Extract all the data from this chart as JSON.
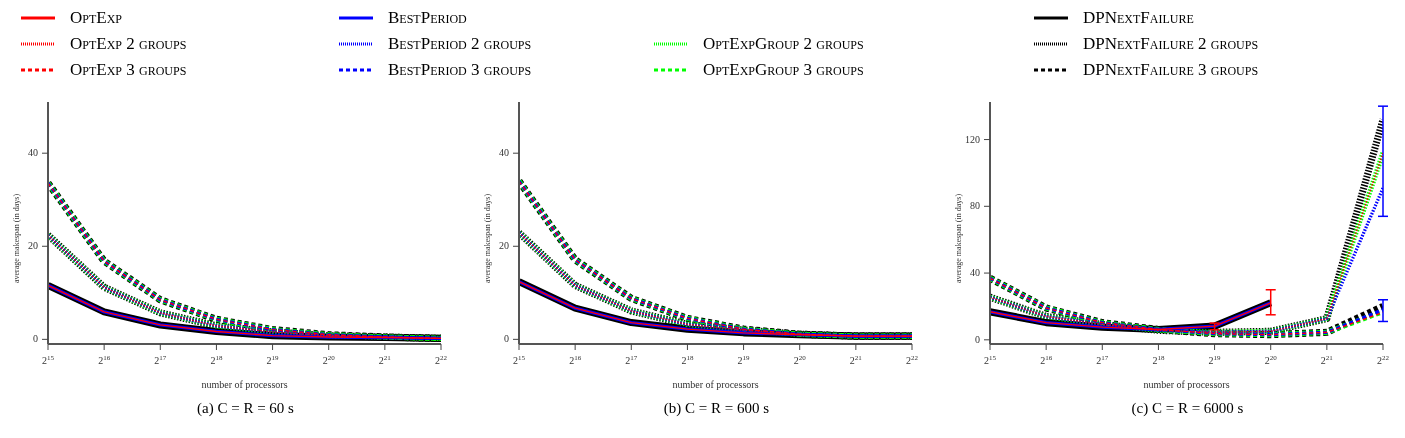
{
  "chart_data": [
    {
      "type": "line",
      "xlabel": "number of processors",
      "ylabel": "average makespan (in days)",
      "annotations": [
        "(a) C = R = 60 s"
      ],
      "log": "x",
      "legend": "top",
      "grid": false,
      "marker": "none",
      "x": [
        32768,
        65536,
        131072,
        262144,
        524288,
        1048576,
        2097152,
        4194304
      ],
      "xlim": [
        32768,
        4194304
      ],
      "xticks": [
        {
          "value": 32768,
          "label": "2$^{15}$"
        },
        {
          "value": 65536,
          "label": "2$^{16}$"
        },
        {
          "value": 131072,
          "label": "2$^{17}$"
        },
        {
          "value": 262144,
          "label": "2$^{18}$"
        },
        {
          "value": 524288,
          "label": "2$^{19}$"
        },
        {
          "value": 1048576,
          "label": "2$^{20}$"
        },
        {
          "value": 2097152,
          "label": "2$^{21}$"
        },
        {
          "value": 4194304,
          "label": "2$^{22}$"
        }
      ],
      "ylim": [
        -1,
        51
      ],
      "yticks": [
        0,
        20,
        40
      ],
      "series": [
        {
          "name": "OptExp",
          "color": "#ff0000",
          "line_style": "solid",
          "values": [
            11.6,
            5.9,
            3.1,
            1.7,
            0.8,
            0.5,
            0.4,
            0.2
          ]
        },
        {
          "name": "OptExp 2 groups",
          "color": "#ff0000",
          "line_style": "dotted",
          "values": [
            22.4,
            11.2,
            5.7,
            2.9,
            1.6,
            0.8,
            0.5,
            0.2
          ]
        },
        {
          "name": "OptExp 3 groups",
          "color": "#ff0000",
          "line_style": "dashed",
          "values": [
            33.6,
            16.8,
            8.5,
            4.3,
            2.1,
            1.0,
            0.5,
            0.2
          ]
        },
        {
          "name": "BestPeriod",
          "color": "#0000ff",
          "line_style": "solid",
          "values": [
            11.6,
            5.9,
            3.1,
            1.7,
            0.8,
            0.5,
            0.4,
            0.2
          ]
        },
        {
          "name": "BestPeriod 2 groups",
          "color": "#0000ff",
          "line_style": "dotted",
          "values": [
            22.4,
            11.2,
            5.7,
            2.9,
            1.6,
            0.8,
            0.5,
            0.2
          ]
        },
        {
          "name": "BestPeriod 3 groups",
          "color": "#0000ff",
          "line_style": "dashed",
          "values": [
            33.6,
            16.8,
            8.5,
            4.3,
            2.1,
            1.0,
            0.5,
            0.2
          ]
        },
        {
          "name": "OptExpGroup 2 groups",
          "color": "#00ff00",
          "line_style": "dotted",
          "values": [
            22.4,
            11.2,
            5.7,
            2.9,
            1.6,
            0.8,
            0.5,
            0.2
          ]
        },
        {
          "name": "OptExpGroup 3 groups",
          "color": "#00ff00",
          "line_style": "dashed",
          "values": [
            33.6,
            16.8,
            8.5,
            4.3,
            2.1,
            1.0,
            0.5,
            0.2
          ]
        },
        {
          "name": "DPNextFailure",
          "color": "#000000",
          "line_style": "solid",
          "values": [
            11.6,
            5.9,
            3.1,
            1.7,
            0.8,
            0.5,
            0.4,
            0.2
          ]
        },
        {
          "name": "DPNextFailure 2 groups",
          "color": "#000000",
          "line_style": "dotted",
          "values": [
            22.4,
            11.2,
            5.7,
            2.9,
            1.6,
            0.8,
            0.5,
            0.2
          ]
        },
        {
          "name": "DPNextFailure 3 groups",
          "color": "#000000",
          "line_style": "dashed",
          "values": [
            33.6,
            16.8,
            8.5,
            4.3,
            2.1,
            1.0,
            0.5,
            0.2
          ]
        }
      ]
    },
    {
      "type": "line",
      "xlabel": "number of processors",
      "ylabel": "average makespan (in days)",
      "annotations": [
        "(b) C = R = 600 s"
      ],
      "log": "x",
      "grid": false,
      "marker": "none",
      "x": [
        32768,
        65536,
        131072,
        262144,
        524288,
        1048576,
        2097152,
        4194304
      ],
      "xlim": [
        32768,
        4194304
      ],
      "xticks": [
        {
          "value": 32768,
          "label": "2$^{15}$"
        },
        {
          "value": 65536,
          "label": "2$^{16}$"
        },
        {
          "value": 131072,
          "label": "2$^{17}$"
        },
        {
          "value": 262144,
          "label": "2$^{18}$"
        },
        {
          "value": 524288,
          "label": "2$^{19}$"
        },
        {
          "value": 1048576,
          "label": "2$^{20}$"
        },
        {
          "value": 2097152,
          "label": "2$^{21}$"
        },
        {
          "value": 4194304,
          "label": "2$^{22}$"
        }
      ],
      "ylim": [
        -1,
        51
      ],
      "yticks": [
        0,
        20,
        40
      ],
      "series": [
        {
          "color": "#ff0000",
          "line_style": "solid",
          "values": [
            12.4,
            6.7,
            3.6,
            2.2,
            1.4,
            1.0,
            0.7,
            0.7
          ]
        },
        {
          "color": "#ff0000",
          "line_style": "dotted",
          "values": [
            22.9,
            11.6,
            6.1,
            3.2,
            2.0,
            1.1,
            0.7,
            0.7
          ]
        },
        {
          "color": "#ff0000",
          "line_style": "dashed",
          "values": [
            34.0,
            17.1,
            8.8,
            4.5,
            2.2,
            1.1,
            0.7,
            0.7
          ]
        },
        {
          "color": "#0000ff",
          "line_style": "solid",
          "values": [
            12.4,
            6.7,
            3.6,
            2.2,
            1.4,
            1.0,
            0.7,
            0.7
          ]
        },
        {
          "color": "#0000ff",
          "line_style": "dotted",
          "values": [
            22.9,
            11.6,
            6.1,
            3.2,
            2.0,
            1.1,
            0.7,
            0.7
          ]
        },
        {
          "color": "#0000ff",
          "line_style": "dashed",
          "values": [
            34.0,
            17.1,
            8.8,
            4.5,
            2.2,
            1.1,
            0.7,
            0.7
          ]
        },
        {
          "color": "#00ff00",
          "line_style": "dotted",
          "values": [
            22.9,
            11.6,
            6.1,
            3.2,
            2.0,
            1.1,
            0.7,
            0.7
          ]
        },
        {
          "color": "#00ff00",
          "line_style": "dashed",
          "values": [
            34.0,
            17.1,
            8.8,
            4.5,
            2.2,
            1.1,
            0.7,
            0.7
          ]
        },
        {
          "color": "#000000",
          "line_style": "solid",
          "values": [
            12.4,
            6.7,
            3.6,
            2.2,
            1.4,
            1.0,
            0.7,
            0.7
          ]
        },
        {
          "color": "#000000",
          "line_style": "dotted",
          "values": [
            22.9,
            11.6,
            6.1,
            3.2,
            2.0,
            1.1,
            0.7,
            0.7
          ]
        },
        {
          "color": "#000000",
          "line_style": "dashed",
          "values": [
            34.0,
            17.1,
            8.8,
            4.5,
            2.2,
            1.1,
            0.7,
            0.7
          ]
        }
      ]
    },
    {
      "type": "line",
      "xlabel": "number of processors",
      "ylabel": "average makespan (in days)",
      "annotations": [
        "(c) C = R = 6000 s"
      ],
      "log": "x",
      "grid": false,
      "marker": "none",
      "x": [
        32768,
        65536,
        131072,
        262144,
        524288,
        1048576,
        2097152,
        4194304
      ],
      "xlim": [
        32768,
        4194304
      ],
      "xticks": [
        {
          "value": 32768,
          "label": "2$^{15}$"
        },
        {
          "value": 65536,
          "label": "2$^{16}$"
        },
        {
          "value": 131072,
          "label": "2$^{17}$"
        },
        {
          "value": 262144,
          "label": "2$^{18}$"
        },
        {
          "value": 524288,
          "label": "2$^{19}$"
        },
        {
          "value": 1048576,
          "label": "2$^{20}$"
        },
        {
          "value": 2097152,
          "label": "2$^{21}$"
        },
        {
          "value": 4194304,
          "label": "2$^{22}$"
        }
      ],
      "ylim": [
        -2.5,
        142.5
      ],
      "yticks": [
        0,
        40,
        80,
        120
      ],
      "series": [
        {
          "color": "#ff0000",
          "line_style": "solid",
          "values": [
            16.8,
            10.3,
            7.6,
            6.2,
            8.2,
            22.2,
            null,
            null
          ],
          "errors": [
            null,
            null,
            null,
            null,
            [
              6,
              10
            ],
            [
              15,
              30
            ],
            null,
            null
          ]
        },
        {
          "color": "#ff0000",
          "line_style": "dotted",
          "values": [
            25.6,
            14,
            9.2,
            5.7,
            4.5,
            5.1,
            12.7,
            112
          ]
        },
        {
          "color": "#ff0000",
          "line_style": "dashed",
          "values": [
            36.9,
            19.1,
            10.3,
            6.2,
            3.7,
            3.1,
            4.5,
            16.4
          ]
        },
        {
          "color": "#0000ff",
          "line_style": "solid",
          "values": [
            16.8,
            10.3,
            7.6,
            6.2,
            8.2,
            22.2,
            null,
            null
          ]
        },
        {
          "color": "#0000ff",
          "line_style": "dotted",
          "values": [
            25.6,
            14,
            9.2,
            5.7,
            4.5,
            5.1,
            12.7,
            91
          ],
          "errors": [
            null,
            null,
            null,
            null,
            null,
            null,
            null,
            [
              74,
              140
            ]
          ]
        },
        {
          "color": "#0000ff",
          "line_style": "dashed",
          "values": [
            36.9,
            19.1,
            10.3,
            6.2,
            3.7,
            3.1,
            4.5,
            18
          ],
          "errors": [
            null,
            null,
            null,
            null,
            null,
            null,
            null,
            [
              11,
              24
            ]
          ]
        },
        {
          "color": "#00ff00",
          "line_style": "dotted",
          "values": [
            25.6,
            14,
            9.2,
            5.7,
            4.5,
            5.1,
            12.7,
            112
          ]
        },
        {
          "color": "#00ff00",
          "line_style": "dashed",
          "values": [
            36.9,
            19.1,
            10.3,
            6.2,
            3.7,
            3.1,
            4.5,
            17
          ]
        },
        {
          "color": "#000000",
          "line_style": "solid",
          "values": [
            16.8,
            10.3,
            7.6,
            6.2,
            8.2,
            22.2,
            null,
            null
          ]
        },
        {
          "color": "#000000",
          "line_style": "dotted",
          "values": [
            25.6,
            14,
            9.2,
            5.7,
            4.5,
            5.1,
            12.7,
            132
          ]
        },
        {
          "color": "#000000",
          "line_style": "dashed",
          "values": [
            36.9,
            19.1,
            10.3,
            6.2,
            3.7,
            3.1,
            4.5,
            20
          ]
        }
      ]
    }
  ]
}
